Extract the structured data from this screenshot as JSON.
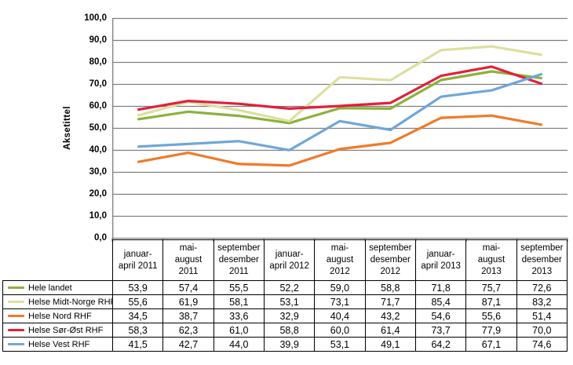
{
  "chart": {
    "y_axis_title": "Aksetittel",
    "y_ticks": [
      "100,0",
      "90,0",
      "80,0",
      "70,0",
      "60,0",
      "50,0",
      "40,0",
      "30,0",
      "20,0",
      "10,0",
      "0,0"
    ],
    "gridline_color": "#7f7f7f",
    "axis_color": "#7f7f7f",
    "table_border_color": "#000000"
  },
  "chart_data": {
    "type": "line",
    "title": "",
    "xlabel": "",
    "ylabel": "Aksetittel",
    "ylim": [
      0,
      100
    ],
    "y_tick_step": 10,
    "grid": true,
    "legend_position": "table-left",
    "categories": [
      "januar-april 2011",
      "mai-august 2011",
      "september desember 2011",
      "januar-april 2012",
      "mai-august 2012",
      "september desember 2012",
      "januar-april 2013",
      "mai-august 2013",
      "september desember 2013"
    ],
    "series": [
      {
        "name": "Hele landet",
        "color": "#8cb13c",
        "values": [
          53.9,
          57.4,
          55.5,
          52.2,
          59.0,
          58.8,
          71.8,
          75.7,
          72.6
        ],
        "display_values": [
          "53,9",
          "57,4",
          "55,5",
          "52,2",
          "59,0",
          "58,8",
          "71,8",
          "75,7",
          "72,6"
        ]
      },
      {
        "name": "Helse Midt-Norge RHF",
        "color": "#dce09f",
        "values": [
          55.6,
          61.9,
          58.1,
          53.1,
          73.1,
          71.7,
          85.4,
          87.1,
          83.2
        ],
        "display_values": [
          "55,6",
          "61,9",
          "58,1",
          "53,1",
          "73,1",
          "71,7",
          "85,4",
          "87,1",
          "83,2"
        ]
      },
      {
        "name": "Helse Nord RHF",
        "color": "#f07a2b",
        "values": [
          34.5,
          38.7,
          33.6,
          32.9,
          40.4,
          43.2,
          54.6,
          55.6,
          51.4
        ],
        "display_values": [
          "34,5",
          "38,7",
          "33,6",
          "32,9",
          "40,4",
          "43,2",
          "54,6",
          "55,6",
          "51,4"
        ]
      },
      {
        "name": "Helse Sør-Øst RHF",
        "color": "#e1203c",
        "values": [
          58.3,
          62.3,
          61.0,
          58.8,
          60.0,
          61.4,
          73.7,
          77.9,
          70.0
        ],
        "display_values": [
          "58,3",
          "62,3",
          "61,0",
          "58,8",
          "60,0",
          "61,4",
          "73,7",
          "77,9",
          "70,0"
        ]
      },
      {
        "name": "Helse Vest RHF",
        "color": "#6fa6d9",
        "values": [
          41.5,
          42.7,
          44.0,
          39.9,
          53.1,
          49.1,
          64.2,
          67.1,
          74.6
        ],
        "display_values": [
          "41,5",
          "42,7",
          "44,0",
          "39,9",
          "53,1",
          "49,1",
          "64,2",
          "67,1",
          "74,6"
        ]
      }
    ]
  },
  "table": {
    "header_lines": [
      "januar-\napril 2011",
      "mai-\naugust\n2011",
      "september\ndesember\n2011",
      "januar-\napril 2012",
      "mai-\naugust\n2012",
      "september\ndesember\n2012",
      "januar-\napril 2013",
      "mai-\naugust\n2013",
      "september\ndesember\n2013"
    ]
  }
}
